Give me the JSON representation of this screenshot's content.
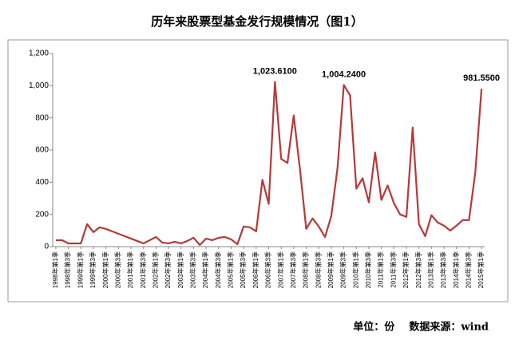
{
  "chart_data": {
    "type": "line",
    "title": "历年来股票型基金发行规模情况（图1）",
    "footer": "单位：份    数据来源：wind",
    "categories": [
      "1998年第1季",
      null,
      "1998年第3季",
      null,
      "1999年第1季",
      null,
      "1999年第3季",
      null,
      "2000年第1季",
      null,
      "2000年第3季",
      null,
      "2001年第1季",
      null,
      "2001年第3季",
      null,
      "2002年第1季",
      null,
      "2002年第3季",
      null,
      "2003年第1季",
      null,
      "2003年第3季",
      null,
      "2004年第1季",
      null,
      "2004年第3季",
      null,
      "2005年第1季",
      null,
      "2005年第3季",
      null,
      "2006年第1季",
      null,
      "2006年第3季",
      null,
      "2007年第1季",
      null,
      "2007年第3季",
      null,
      "2008年第1季",
      null,
      "2008年第3季",
      null,
      "2009年第1季",
      null,
      "2009年第3季",
      null,
      "2010年第1季",
      null,
      "2010年第3季",
      null,
      "2011年第1季",
      null,
      "2011年第3季",
      null,
      "2012年第1季",
      null,
      "2012年第3季",
      null,
      "2013年第1季",
      null,
      "2013年第3季",
      null,
      "2014年第1季",
      null,
      "2014年第3季",
      null,
      "2015年第1季"
    ],
    "series": [
      {
        "name": "股票型基金发行规模",
        "color": "#b5393a",
        "values": [
          40,
          40,
          20,
          20,
          20,
          140,
          90,
          120,
          110,
          95,
          80,
          65,
          50,
          35,
          20,
          40,
          60,
          25,
          20,
          30,
          20,
          35,
          55,
          10,
          50,
          40,
          55,
          60,
          45,
          15,
          125,
          120,
          95,
          415,
          265,
          1023.61,
          545,
          520,
          815,
          480,
          110,
          175,
          125,
          60,
          190,
          490,
          1004.24,
          940,
          360,
          425,
          275,
          585,
          290,
          380,
          270,
          200,
          185,
          740,
          140,
          65,
          195,
          150,
          130,
          100,
          130,
          165,
          165,
          460,
          981.55
        ],
        "value_labels": [
          null,
          null,
          null,
          null,
          null,
          null,
          null,
          null,
          null,
          null,
          null,
          null,
          null,
          null,
          null,
          null,
          null,
          null,
          null,
          null,
          null,
          null,
          null,
          null,
          null,
          null,
          null,
          null,
          null,
          null,
          null,
          null,
          null,
          null,
          null,
          "1,023.6100",
          null,
          null,
          null,
          null,
          null,
          null,
          null,
          null,
          null,
          null,
          "1,004.2400",
          null,
          null,
          null,
          null,
          null,
          null,
          null,
          null,
          null,
          null,
          null,
          null,
          null,
          null,
          null,
          null,
          null,
          null,
          null,
          null,
          null,
          "981.5500"
        ]
      }
    ],
    "ylim": [
      0,
      1200
    ],
    "yticks": [
      0,
      200,
      400,
      600,
      800,
      {
        "value": 1000,
        "label": "1,000"
      },
      {
        "value": 1200,
        "label": "1,200"
      }
    ],
    "grid": false
  }
}
